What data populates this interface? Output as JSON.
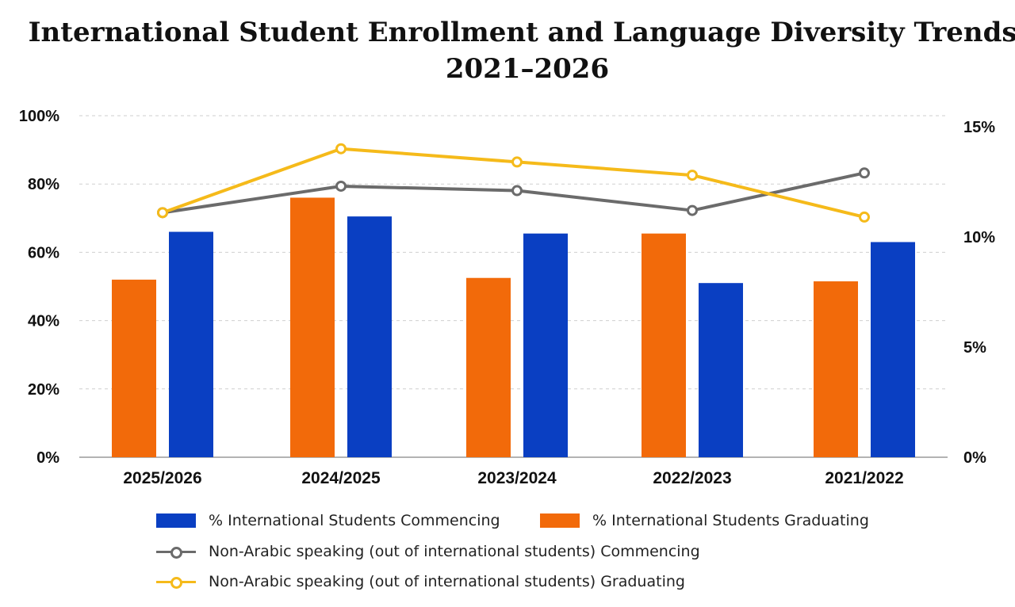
{
  "chart_data": {
    "type": "bar",
    "title_line1": "International Student Enrollment and Language Diversity Trends,",
    "title_line2": "2021–2026",
    "categories": [
      "2025/2026",
      "2024/2025",
      "2023/2024",
      "2022/2023",
      "2021/2022"
    ],
    "y_left": {
      "ticks": [
        "0%",
        "20%",
        "40%",
        "60%",
        "80%",
        "100%"
      ],
      "range": [
        0,
        100
      ]
    },
    "y_right": {
      "ticks": [
        "0%",
        "5%",
        "10%",
        "15%"
      ],
      "tick_values": [
        0,
        5,
        10,
        15
      ],
      "range": [
        0,
        15.5
      ]
    },
    "grid": true,
    "bar_series": [
      {
        "name": "% International Students Graduating",
        "color": "#F26A0A",
        "values": [
          52,
          76,
          52.5,
          65.5,
          51.5
        ]
      },
      {
        "name": "% International Students Commencing",
        "color": "#0A3FC2",
        "values": [
          66,
          70.5,
          65.5,
          51,
          63
        ]
      }
    ],
    "line_series": [
      {
        "name": "Non-Arabic speaking (out of international students) Commencing",
        "color": "#6B6B6B",
        "axis": "right",
        "values": [
          11.1,
          12.3,
          12.1,
          11.2,
          12.9
        ]
      },
      {
        "name": "Non-Arabic speaking (out of international students) Graduating",
        "color": "#F5BA1A",
        "axis": "right",
        "values": [
          11.1,
          14.0,
          13.4,
          12.8,
          10.9
        ]
      }
    ],
    "legend": {
      "commencing_bar": "% International Students Commencing",
      "graduating_bar": "% International Students Graduating",
      "commencing_line": "Non-Arabic speaking (out of international students) Commencing",
      "graduating_line": "Non-Arabic speaking (out of international students) Graduating"
    }
  }
}
